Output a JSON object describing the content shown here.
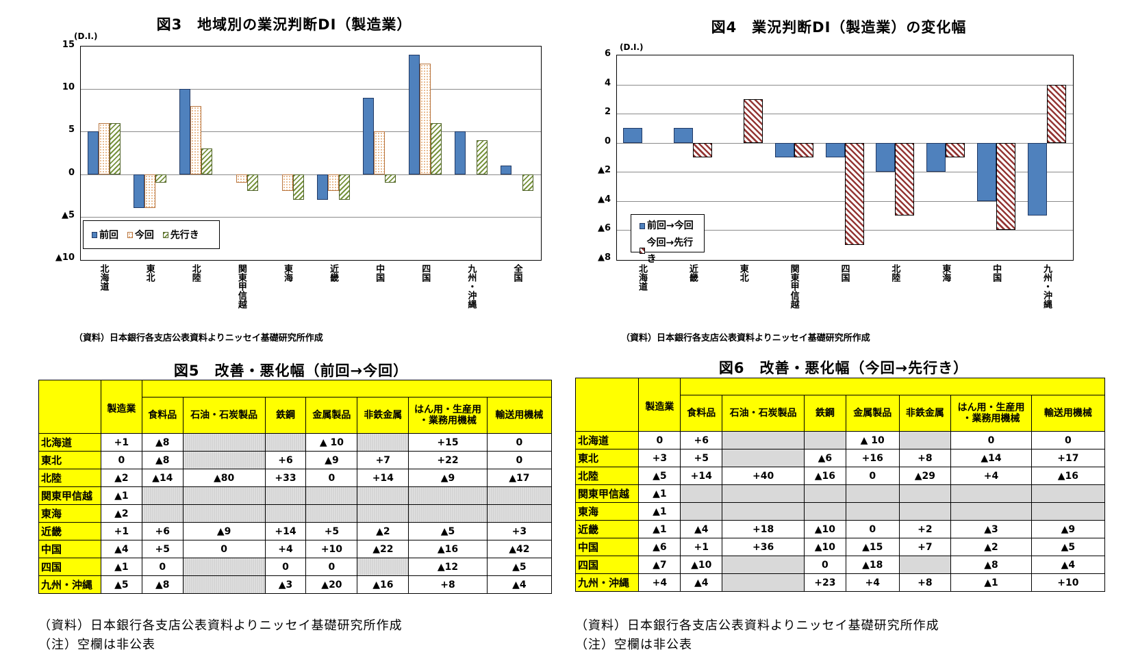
{
  "fig3": {
    "title": "図3　地域別の業況判断DI（製造業）",
    "unit": "(D.I.)",
    "source": "（資料）日本銀行各支店公表資料よりニッセイ基礎研究所作成",
    "legend": [
      "前回",
      "今回",
      "先行き"
    ]
  },
  "fig4": {
    "title": "図4　業況判断DI（製造業）の変化幅",
    "unit": "(D.I.)",
    "source": "（資料）日本銀行各支店公表資料よりニッセイ基礎研究所作成",
    "legend": [
      "前回→今回",
      "今回→先行き"
    ]
  },
  "chart_data": [
    {
      "type": "bar",
      "title": "図3 地域別の業況判断DI（製造業）",
      "ylabel": "(D.I.)",
      "xlabel": "",
      "ylim": [
        -10,
        15
      ],
      "yticks": [
        "15",
        "10",
        "5",
        "0",
        "▲5",
        "▲10"
      ],
      "grid": true,
      "legend_position": "bottom-left inside",
      "categories": [
        "北海道",
        "東北",
        "北陸",
        "関東甲信越",
        "東海",
        "近畿",
        "中国",
        "四国",
        "九州・沖縄",
        "全国"
      ],
      "series": [
        {
          "name": "前回",
          "values": [
            5,
            -4,
            10,
            null,
            null,
            -3,
            9,
            14,
            5,
            1
          ]
        },
        {
          "name": "今回",
          "values": [
            6,
            -4,
            8,
            -1,
            -2,
            -2,
            5,
            13,
            null,
            null
          ]
        },
        {
          "name": "先行き",
          "values": [
            6,
            -1,
            3,
            -2,
            -3,
            -3,
            -1,
            6,
            4,
            -2
          ]
        }
      ]
    },
    {
      "type": "bar",
      "title": "図4 業況判断DI（製造業）の変化幅",
      "ylabel": "(D.I.)",
      "xlabel": "",
      "ylim": [
        -8,
        6
      ],
      "yticks": [
        "6",
        "4",
        "2",
        "0",
        "▲2",
        "▲4",
        "▲6",
        "▲8"
      ],
      "grid": true,
      "legend_position": "bottom-left inside",
      "categories": [
        "北海道",
        "近畿",
        "東北",
        "関東甲信越",
        "四国",
        "北陸",
        "東海",
        "中国",
        "九州・沖縄"
      ],
      "series": [
        {
          "name": "前回→今回",
          "values": [
            1,
            1,
            null,
            -1,
            -1,
            -2,
            -2,
            -4,
            -5
          ]
        },
        {
          "name": "今回→先行き",
          "values": [
            null,
            -1,
            3,
            -1,
            -7,
            -5,
            -1,
            -6,
            4
          ]
        }
      ]
    }
  ],
  "fig5": {
    "title": "図5　改善・悪化幅（前回→今回）",
    "header_mfg": "製造業",
    "columns": [
      "食料品",
      "石油・石炭製品",
      "鉄鋼",
      "金属製品",
      "非鉄金属",
      "はん用・生産用\n・業務用機械",
      "輸送用機械"
    ],
    "rows": [
      {
        "region": "北海道",
        "values": [
          "+1",
          "▲8",
          "",
          "",
          "▲ 10",
          "",
          "+15",
          "0"
        ]
      },
      {
        "region": "東北",
        "values": [
          "0",
          "▲8",
          "",
          "+6",
          "▲9",
          "+7",
          "+22",
          "0"
        ]
      },
      {
        "region": "北陸",
        "values": [
          "▲2",
          "▲14",
          "▲80",
          "+33",
          "0",
          "+14",
          "▲9",
          "▲17"
        ]
      },
      {
        "region": "関東甲信越",
        "values": [
          "▲1",
          "",
          "",
          "",
          "",
          "",
          "",
          ""
        ]
      },
      {
        "region": "東海",
        "values": [
          "▲2",
          "",
          "",
          "",
          "",
          "",
          "",
          ""
        ]
      },
      {
        "region": "近畿",
        "values": [
          "+1",
          "+6",
          "▲9",
          "+14",
          "+5",
          "▲2",
          "▲5",
          "+3"
        ]
      },
      {
        "region": "中国",
        "values": [
          "▲4",
          "+5",
          "0",
          "+4",
          "+10",
          "▲22",
          "▲16",
          "▲42"
        ]
      },
      {
        "region": "四国",
        "values": [
          "▲1",
          "0",
          "",
          "0",
          "0",
          "",
          "▲12",
          "▲5"
        ]
      },
      {
        "region": "九州・沖縄",
        "values": [
          "▲5",
          "▲8",
          "",
          "▲3",
          "▲20",
          "▲16",
          "+8",
          "▲4"
        ]
      }
    ],
    "note_source": "（資料）日本銀行各支店公表資料よりニッセイ基礎研究所作成",
    "note_blank": "（注）空欄は非公表"
  },
  "fig6": {
    "title": "図6　改善・悪化幅（今回→先行き）",
    "header_mfg": "製造業",
    "columns": [
      "食料品",
      "石油・石炭製品",
      "鉄鋼",
      "金属製品",
      "非鉄金属",
      "はん用・生産用\n・業務用機械",
      "輸送用機械"
    ],
    "rows": [
      {
        "region": "北海道",
        "values": [
          "0",
          "+6",
          "",
          "",
          "▲ 10",
          "",
          "0",
          "0"
        ]
      },
      {
        "region": "東北",
        "values": [
          "+3",
          "+5",
          "",
          "▲6",
          "+16",
          "+8",
          "▲14",
          "+17"
        ]
      },
      {
        "region": "北陸",
        "values": [
          "▲5",
          "+14",
          "+40",
          "▲16",
          "0",
          "▲29",
          "+4",
          "▲16"
        ]
      },
      {
        "region": "関東甲信越",
        "values": [
          "▲1",
          "",
          "",
          "",
          "",
          "",
          "",
          ""
        ]
      },
      {
        "region": "東海",
        "values": [
          "▲1",
          "",
          "",
          "",
          "",
          "",
          "",
          ""
        ]
      },
      {
        "region": "近畿",
        "values": [
          "▲1",
          "▲4",
          "+18",
          "▲10",
          "0",
          "+2",
          "▲3",
          "▲9"
        ]
      },
      {
        "region": "中国",
        "values": [
          "▲6",
          "+1",
          "+36",
          "▲10",
          "▲15",
          "+7",
          "▲2",
          "▲5"
        ]
      },
      {
        "region": "四国",
        "values": [
          "▲7",
          "▲10",
          "",
          "0",
          "▲18",
          "",
          "▲8",
          "▲4"
        ]
      },
      {
        "region": "九州・沖縄",
        "values": [
          "+4",
          "▲4",
          "",
          "+23",
          "+4",
          "+8",
          "▲1",
          "+10"
        ]
      }
    ],
    "note_source": "（資料）日本銀行各支店公表資料よりニッセイ基礎研究所作成",
    "note_blank": "（注）空欄は非公表"
  },
  "colors": {
    "prev_blue": "#4f81bd",
    "now_dots": "#e2a66c",
    "future_green": "#76923c",
    "change_red": "#943634",
    "header_yellow": "#ffff00",
    "blank_grey": "#d9d9d9"
  }
}
